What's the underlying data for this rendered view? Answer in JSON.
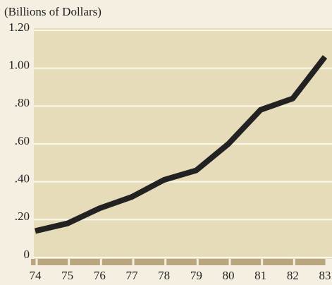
{
  "chart_data": {
    "type": "line",
    "y_label": "(Billions of Dollars)",
    "categories": [
      "74",
      "75",
      "76",
      "77",
      "78",
      "79",
      "80",
      "81",
      "82",
      "83"
    ],
    "values": [
      0.14,
      0.18,
      0.26,
      0.32,
      0.41,
      0.46,
      0.6,
      0.78,
      0.84,
      1.06
    ],
    "color": "#222222",
    "ylim": [
      0,
      1.2
    ],
    "yticks": [
      0,
      {
        "value": 0.2,
        "label": ".20"
      },
      {
        "value": 0.4,
        "label": ".40"
      },
      {
        "value": 0.6,
        "label": ".60"
      },
      {
        "value": 0.8,
        "label": ".80"
      },
      {
        "value": 1.0,
        "label": "1.00"
      },
      {
        "value": 1.2,
        "label": "1.20"
      }
    ],
    "grid": true
  }
}
